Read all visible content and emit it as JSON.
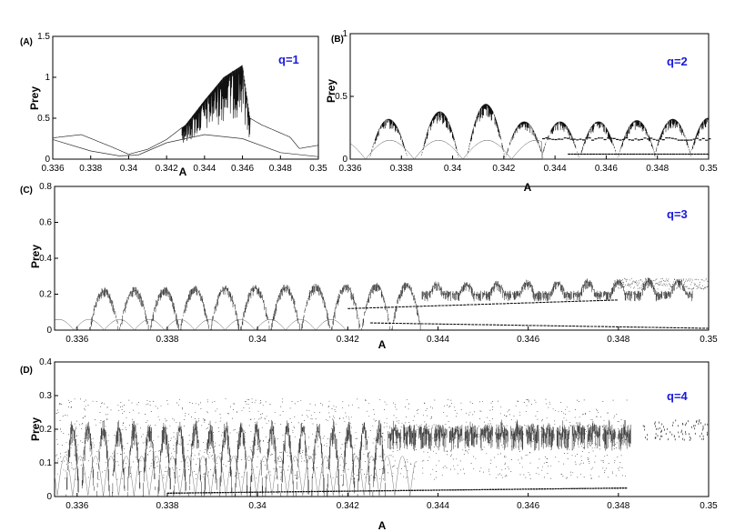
{
  "chart_data": [
    {
      "type": "scatter",
      "panel_label": "(A)",
      "annotation": "q=1",
      "xlabel": "A",
      "ylabel": "Prey",
      "xlim": [
        0.336,
        0.35
      ],
      "ylim": [
        0,
        1.5
      ],
      "xticks": [
        "0.336",
        "0.338",
        "0.34",
        "0.342",
        "0.344",
        "0.346",
        "0.348",
        "0.35"
      ],
      "yticks": [
        "0",
        "0.5",
        "1",
        "1.5"
      ],
      "envelope": [
        {
          "x": 0.336,
          "y": 0.26
        },
        {
          "x": 0.3375,
          "y": 0.3
        },
        {
          "x": 0.339,
          "y": 0.16
        },
        {
          "x": 0.34,
          "y": 0.06
        },
        {
          "x": 0.341,
          "y": 0.12
        },
        {
          "x": 0.342,
          "y": 0.24
        },
        {
          "x": 0.343,
          "y": 0.42
        },
        {
          "x": 0.344,
          "y": 0.72
        },
        {
          "x": 0.345,
          "y": 1.0
        },
        {
          "x": 0.346,
          "y": 1.15
        },
        {
          "x": 0.3464,
          "y": 0.5
        },
        {
          "x": 0.347,
          "y": 0.42
        },
        {
          "x": 0.3485,
          "y": 0.27
        },
        {
          "x": 0.349,
          "y": 0.13
        },
        {
          "x": 0.35,
          "y": 0.17
        }
      ],
      "lower_branch": [
        {
          "x": 0.336,
          "y": 0.24
        },
        {
          "x": 0.338,
          "y": 0.1
        },
        {
          "x": 0.3395,
          "y": 0.04
        },
        {
          "x": 0.3405,
          "y": 0.05
        },
        {
          "x": 0.342,
          "y": 0.2
        },
        {
          "x": 0.344,
          "y": 0.3
        },
        {
          "x": 0.346,
          "y": 0.25
        },
        {
          "x": 0.348,
          "y": 0.08
        },
        {
          "x": 0.35,
          "y": 0.03
        }
      ],
      "noisy_region": [
        0.3428,
        0.3464
      ]
    },
    {
      "type": "scatter",
      "panel_label": "(B)",
      "annotation": "q=2",
      "xlabel": "A",
      "ylabel": "Prey",
      "xlim": [
        0.336,
        0.35
      ],
      "ylim": [
        0,
        1
      ],
      "xticks": [
        "0.336",
        "0.338",
        "0.34",
        "0.342",
        "0.344",
        "0.346",
        "0.348",
        "0.35"
      ],
      "yticks": [
        "0",
        "0.5",
        "1"
      ],
      "bumps": [
        {
          "x": 0.3375,
          "peak": 0.32
        },
        {
          "x": 0.3395,
          "peak": 0.38
        },
        {
          "x": 0.3413,
          "peak": 0.44
        },
        {
          "x": 0.3428,
          "peak": 0.3
        },
        {
          "x": 0.3442,
          "peak": 0.3
        },
        {
          "x": 0.3457,
          "peak": 0.3
        },
        {
          "x": 0.3472,
          "peak": 0.31
        },
        {
          "x": 0.3486,
          "peak": 0.32
        },
        {
          "x": 0.35,
          "peak": 0.33
        }
      ],
      "mid_branch": {
        "start": 0.3435,
        "y": 0.16
      },
      "low_branch": {
        "start": 0.3445,
        "y": 0.04
      }
    },
    {
      "type": "scatter",
      "panel_label": "(C)",
      "annotation": "q=3",
      "xlabel": "A",
      "ylabel": "Prey",
      "xlim": [
        0.3355,
        0.35
      ],
      "ylim": [
        0,
        0.8
      ],
      "xticks": [
        "0.336",
        "0.338",
        "0.34",
        "0.342",
        "0.344",
        "0.346",
        "0.348",
        "0.35"
      ],
      "yticks": [
        "0",
        "0.2",
        "0.4",
        "0.6",
        "0.8"
      ],
      "bumps_start": 0.3366,
      "bumps_spacing": 0.00067,
      "bumps_count": 20,
      "base_peak": 0.22,
      "top_level": 0.26,
      "mid_branch": {
        "start": 0.342,
        "y": 0.12
      },
      "low_branch": {
        "start": 0.3425,
        "y": 0.04
      },
      "merge_at": 0.348
    },
    {
      "type": "scatter",
      "panel_label": "(D)",
      "annotation": "q=4",
      "xlabel": "A",
      "ylabel": "Prey",
      "xlim": [
        0.3355,
        0.35
      ],
      "ylim": [
        0,
        0.4
      ],
      "xticks": [
        "0.336",
        "0.338",
        "0.34",
        "0.342",
        "0.344",
        "0.346",
        "0.348",
        "0.35"
      ],
      "yticks": [
        "0",
        "0.1",
        "0.2",
        "0.3",
        "0.4"
      ],
      "bumps_start": 0.3359,
      "bumps_spacing": 0.00034,
      "dense_band": {
        "start": 0.343,
        "end": 0.3482,
        "y": 0.185
      },
      "low_branch_y": 0.01,
      "sparse_after": 0.3485
    }
  ]
}
